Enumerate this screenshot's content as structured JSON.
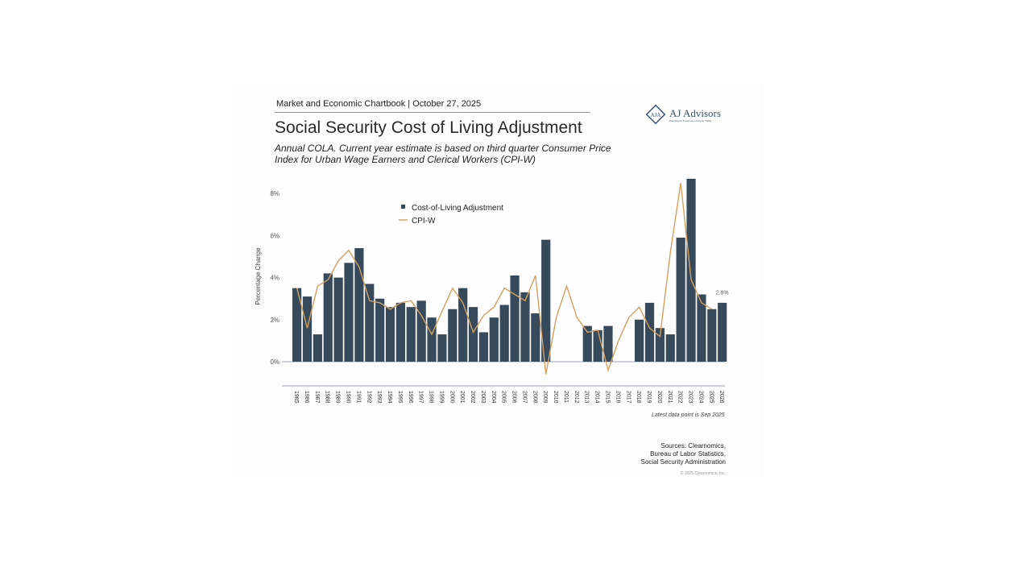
{
  "header": "Market and Economic Chartbook | October 27, 2025",
  "title": "Social Security Cost of Living Adjustment",
  "subtitle": "Annual COLA. Current year estimate is based on third quarter Consumer Price Index for Urban Wage Earners and Clerical Workers (CPI-W)",
  "logo": {
    "name": "AJ Advisors",
    "monogram": "AJA",
    "tagline": "Planning for Tomorrow, Living for Today"
  },
  "note": "Latest data point is Sep 2025",
  "sources": "Sources: Clearnomics,\nBureau of Labor Statistics,\nSocial Security Administration",
  "copyright": "© 2025 Clearnomics, Inc.",
  "colors": {
    "bar": "#364a5c",
    "line": "#d4a15e",
    "axis": "#9aa7b3"
  },
  "chart_data": {
    "type": "bar+line",
    "ylabel": "Percentage Change",
    "ylim": [
      -1,
      8.5
    ],
    "yticks": [
      "0%",
      "2%",
      "4%",
      "6%",
      "8%"
    ],
    "ytick_values": [
      0,
      2,
      4,
      6,
      8
    ],
    "legend": "top-center",
    "categories": [
      "1985",
      "1986",
      "1987",
      "1988",
      "1989",
      "1990",
      "1991",
      "1992",
      "1993",
      "1994",
      "1995",
      "1996",
      "1997",
      "1998",
      "1999",
      "2000",
      "2001",
      "2002",
      "2003",
      "2004",
      "2005",
      "2006",
      "2007",
      "2008",
      "2009",
      "2010",
      "2011",
      "2012",
      "2013",
      "2014",
      "2015",
      "2016",
      "2017",
      "2018",
      "2019",
      "2020",
      "2021",
      "2022",
      "2023",
      "2024",
      "2025",
      "2026"
    ],
    "series": [
      {
        "name": "Cost-of-Living Adjustment",
        "type": "bar",
        "values": [
          3.5,
          3.1,
          1.3,
          4.2,
          4.0,
          4.7,
          5.4,
          3.7,
          3.0,
          2.6,
          2.8,
          2.6,
          2.9,
          2.1,
          1.3,
          2.5,
          3.5,
          2.6,
          1.4,
          2.1,
          2.7,
          4.1,
          3.3,
          2.3,
          5.8,
          0,
          0,
          0,
          1.7,
          1.5,
          1.7,
          0,
          0,
          2.0,
          2.8,
          1.6,
          1.3,
          5.9,
          8.7,
          3.2,
          2.5,
          2.8
        ]
      },
      {
        "name": "CPI-W",
        "type": "line",
        "values": [
          3.5,
          1.6,
          3.6,
          3.9,
          4.8,
          5.3,
          4.5,
          2.9,
          2.8,
          2.5,
          2.8,
          2.9,
          2.2,
          1.3,
          2.4,
          3.5,
          2.8,
          1.4,
          2.2,
          2.6,
          3.5,
          3.2,
          2.9,
          4.1,
          -0.6,
          2.1,
          3.6,
          2.1,
          1.4,
          1.5,
          -0.4,
          1.0,
          2.1,
          2.6,
          1.6,
          1.2,
          5.2,
          8.5,
          3.9,
          2.8,
          2.5,
          null
        ]
      }
    ],
    "annotations": [
      {
        "category": "2026",
        "text": "2.8%"
      }
    ]
  }
}
